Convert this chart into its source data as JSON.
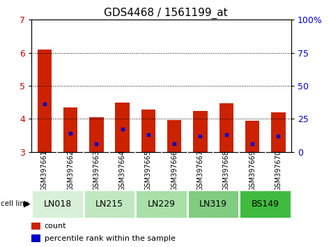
{
  "title": "GDS4468 / 1561199_at",
  "samples": [
    "GSM397661",
    "GSM397662",
    "GSM397663",
    "GSM397664",
    "GSM397665",
    "GSM397666",
    "GSM397667",
    "GSM397668",
    "GSM397669",
    "GSM397670"
  ],
  "count_values": [
    6.1,
    4.35,
    4.05,
    4.5,
    4.28,
    3.97,
    4.25,
    4.47,
    3.95,
    4.2
  ],
  "percentile_values": [
    4.45,
    3.57,
    3.25,
    3.7,
    3.52,
    3.25,
    3.48,
    3.52,
    3.25,
    3.47
  ],
  "bar_bottom": 3.0,
  "ylim_left": [
    3.0,
    7.0
  ],
  "ylim_right": [
    0,
    100
  ],
  "yticks_left": [
    3,
    4,
    5,
    6,
    7
  ],
  "yticks_right": [
    0,
    25,
    50,
    75,
    100
  ],
  "ytick_labels_right": [
    "0",
    "25",
    "50",
    "75",
    "100%"
  ],
  "bar_color": "#cc2200",
  "percentile_color": "#0000cc",
  "bar_width": 0.55,
  "groups": [
    {
      "name": "LN018",
      "indices": [
        0,
        1
      ],
      "color": "#d8f0d8"
    },
    {
      "name": "LN215",
      "indices": [
        2,
        3
      ],
      "color": "#c0e8c0"
    },
    {
      "name": "LN229",
      "indices": [
        4,
        5
      ],
      "color": "#a8e0a8"
    },
    {
      "name": "LN319",
      "indices": [
        6,
        7
      ],
      "color": "#80cc80"
    },
    {
      "name": "BS149",
      "indices": [
        8,
        9
      ],
      "color": "#40bb40"
    }
  ],
  "sample_bg_color": "#c8c8c8",
  "left_tick_color": "#cc0000",
  "right_tick_color": "#0000cc",
  "title_fontsize": 11,
  "sample_label_fontsize": 7,
  "cell_line_fontsize": 9,
  "legend_fontsize": 8
}
